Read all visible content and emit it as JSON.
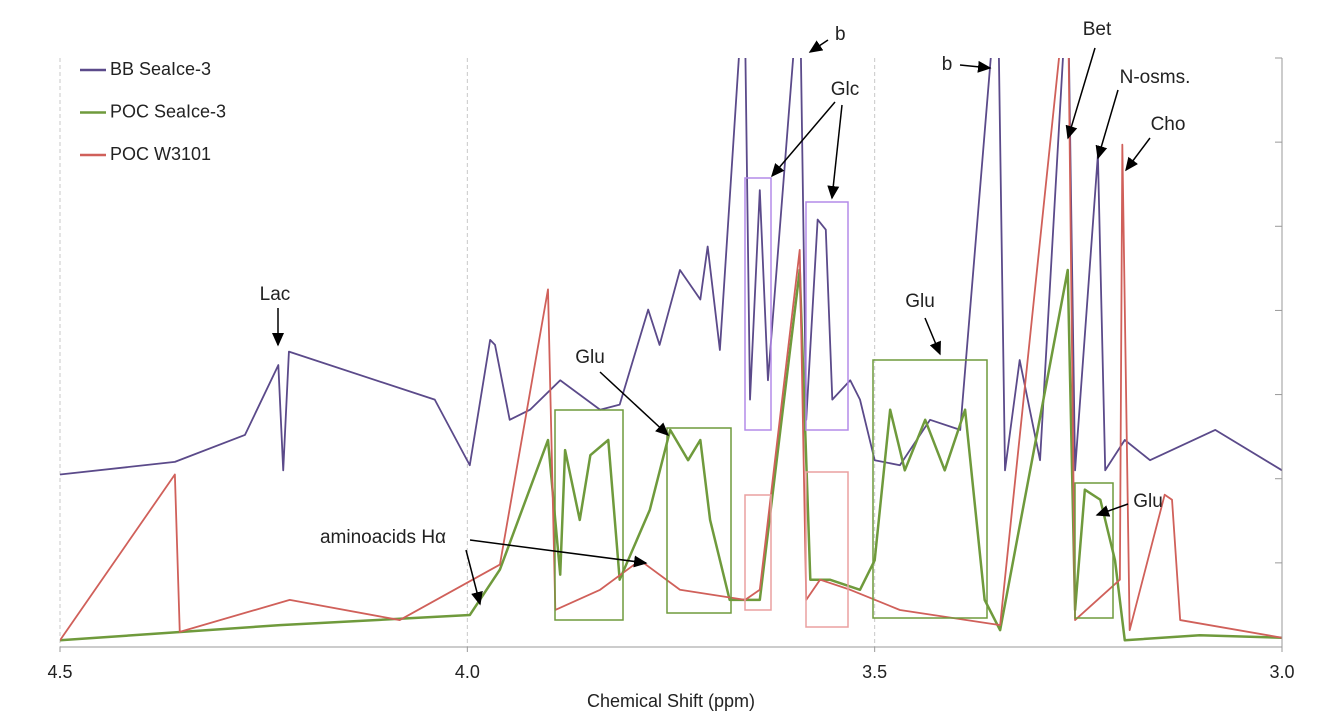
{
  "chart_data": {
    "type": "line",
    "x_label": "Chemical Shift (ppm)",
    "xlim": [
      4.5,
      3.0
    ],
    "xticks": [
      4.5,
      {
        "value": 4.0,
        "label": "4.0"
      },
      3.5,
      {
        "value": 3.0,
        "label": "3.0"
      }
    ],
    "ylim": [
      0,
      7
    ],
    "yticks": [
      0,
      1,
      2,
      3,
      4,
      5,
      6,
      7
    ],
    "grid": true,
    "legend": "top-left",
    "series": [
      {
        "name": "BB SeaIce-3",
        "color": "#5b4a8a",
        "x": [
          4.5,
          4.359,
          4.273,
          4.232,
          4.226,
          4.219,
          4.04,
          3.997,
          3.972,
          3.966,
          3.948,
          3.923,
          3.886,
          3.837,
          3.813,
          3.778,
          3.764,
          3.739,
          3.714,
          3.705,
          3.69,
          3.66,
          3.653,
          3.641,
          3.631,
          3.592,
          3.584,
          3.57,
          3.56,
          3.552,
          3.53,
          3.518,
          3.5,
          3.469,
          3.432,
          3.395,
          3.349,
          3.34,
          3.322,
          3.297,
          3.263,
          3.254,
          3.226,
          3.217,
          3.193,
          3.162,
          3.082,
          3.0
        ],
        "values": [
          2.05,
          2.2,
          2.52,
          3.35,
          2.1,
          3.51,
          2.94,
          2.16,
          3.65,
          3.59,
          2.7,
          2.82,
          3.17,
          2.82,
          2.88,
          4.01,
          3.59,
          4.48,
          4.13,
          4.76,
          3.53,
          8,
          2.94,
          5.43,
          3.17,
          8,
          2.7,
          5.08,
          4.96,
          2.94,
          3.17,
          2.94,
          2.22,
          2.16,
          2.7,
          2.58,
          8,
          2.1,
          3.41,
          2.22,
          8,
          2.1,
          5.85,
          2.1,
          2.46,
          2.22,
          2.58,
          2.1
        ]
      },
      {
        "name": "POC SeaIce-3",
        "color": "#6f9a3c",
        "x": [
          4.5,
          4.23,
          3.997,
          3.96,
          3.901,
          3.886,
          3.88,
          3.862,
          3.849,
          3.827,
          3.813,
          3.776,
          3.751,
          3.729,
          3.714,
          3.702,
          3.678,
          3.641,
          3.592,
          3.579,
          3.555,
          3.518,
          3.5,
          3.481,
          3.463,
          3.438,
          3.414,
          3.389,
          3.365,
          3.346,
          3.263,
          3.254,
          3.242,
          3.223,
          3.205,
          3.193,
          3.101,
          3.0
        ],
        "values": [
          0.08,
          0.26,
          0.38,
          0.92,
          2.46,
          0.86,
          2.34,
          1.51,
          2.28,
          2.46,
          0.8,
          1.63,
          2.58,
          2.22,
          2.46,
          1.51,
          0.56,
          0.56,
          4.48,
          0.8,
          0.8,
          0.68,
          1.03,
          2.82,
          2.1,
          2.7,
          2.1,
          2.82,
          0.56,
          0.2,
          4.48,
          0.44,
          1.87,
          1.75,
          1.03,
          0.08,
          0.14,
          0.11
        ]
      },
      {
        "name": "POC W3101",
        "color": "#d0605a",
        "x": [
          4.5,
          4.359,
          4.353,
          4.218,
          4.083,
          3.96,
          3.901,
          3.892,
          3.837,
          3.788,
          3.739,
          3.659,
          3.641,
          3.592,
          3.584,
          3.567,
          3.53,
          3.469,
          3.346,
          3.263,
          3.254,
          3.199,
          3.196,
          3.187,
          3.144,
          3.135,
          3.125,
          3.0
        ],
        "values": [
          0.08,
          2.05,
          0.18,
          0.56,
          0.32,
          0.98,
          4.25,
          0.44,
          0.68,
          1.03,
          0.68,
          0.56,
          0.68,
          4.72,
          0.56,
          0.8,
          0.68,
          0.44,
          0.26,
          8,
          0.32,
          0.8,
          5.97,
          0.2,
          1.81,
          1.75,
          0.32,
          0.11
        ]
      }
    ],
    "annotations": [
      "Lac",
      "Glu",
      "Glc",
      "b",
      "b",
      "Bet",
      "N-osms.",
      "Cho",
      "Glu",
      "Glu",
      "aminoacids Hα"
    ]
  }
}
